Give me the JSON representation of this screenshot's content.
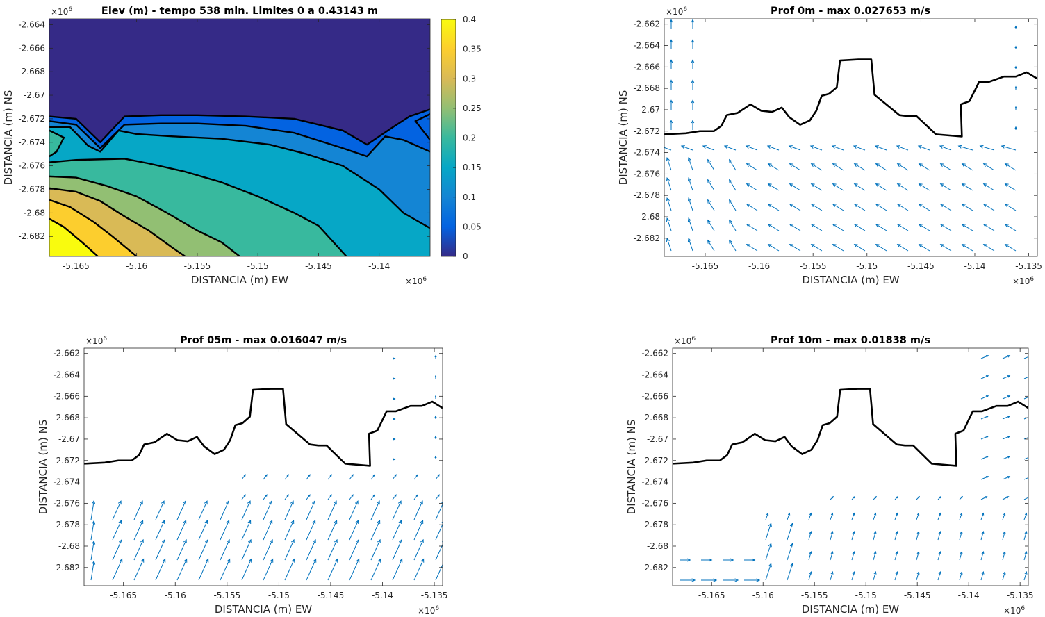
{
  "window": {
    "title": ""
  },
  "colors": {
    "quiver": "#0072bd",
    "coastline": "#000000",
    "axes": "#262626",
    "parula": [
      "#352a87",
      "#0363e1",
      "#1485d4",
      "#06a7c6",
      "#38b99e",
      "#92bf73",
      "#d9ba56",
      "#fcce2e",
      "#f9fb0e"
    ]
  },
  "chart_data": [
    {
      "id": "elev",
      "type": "heatmap",
      "subtype": "filled-contour",
      "title": "Elev (m) - tempo 538 min. Limites 0 a 0.43143 m",
      "xlabel": "DISTANCIA (m) EW",
      "ylabel": "DISTANCIA (m) NS",
      "x_exponent": "×10",
      "x_exponent_power": "6",
      "y_exponent": "×10",
      "y_exponent_power": "6",
      "xlim": [
        -5.1672,
        -5.1358
      ],
      "ylim": [
        -2.6837,
        -2.6635
      ],
      "xticks": [
        -5.165,
        -5.16,
        -5.155,
        -5.15,
        -5.145,
        -5.14
      ],
      "xtick_labels": [
        "-5.165",
        "-5.16",
        "-5.155",
        "-5.15",
        "-5.145",
        "-5.14"
      ],
      "yticks": [
        -2.682,
        -2.68,
        -2.678,
        -2.676,
        -2.674,
        -2.672,
        -2.67,
        -2.668,
        -2.666,
        -2.664
      ],
      "ytick_labels": [
        "-2.682",
        "-2.68",
        "-2.678",
        "-2.676",
        "-2.674",
        "-2.672",
        "-2.67",
        "-2.668",
        "-2.666",
        "-2.664"
      ],
      "colorbar": {
        "limits": [
          0,
          0.4
        ],
        "ticks": [
          0,
          0.05,
          0.1,
          0.15,
          0.2,
          0.25,
          0.3,
          0.35,
          0.4
        ],
        "tick_labels": [
          "0",
          "0.05",
          "0.1",
          "0.15",
          "0.2",
          "0.25",
          "0.3",
          "0.35",
          "0.4"
        ]
      },
      "contour_bands": [
        {
          "level": 0.0,
          "color": "#352a87",
          "boundary": [
            [
              -5.1672,
              -2.6718
            ],
            [
              -5.165,
              -2.672
            ],
            [
              -5.163,
              -2.674
            ],
            [
              -5.161,
              -2.6718
            ],
            [
              -5.158,
              -2.6717
            ],
            [
              -5.155,
              -2.6717
            ],
            [
              -5.151,
              -2.6718
            ],
            [
              -5.147,
              -2.672
            ],
            [
              -5.143,
              -2.673
            ],
            [
              -5.141,
              -2.6742
            ],
            [
              -5.139,
              -2.6728
            ],
            [
              -5.1375,
              -2.6718
            ],
            [
              -5.1358,
              -2.6712
            ]
          ]
        },
        {
          "level": 0.05,
          "color": "#0363e1",
          "boundary": [
            [
              -5.1672,
              -2.6722
            ],
            [
              -5.165,
              -2.6725
            ],
            [
              -5.163,
              -2.6745
            ],
            [
              -5.161,
              -2.6725
            ],
            [
              -5.158,
              -2.6724
            ],
            [
              -5.155,
              -2.6724
            ],
            [
              -5.151,
              -2.6726
            ],
            [
              -5.147,
              -2.6732
            ],
            [
              -5.143,
              -2.6745
            ],
            [
              -5.141,
              -2.6752
            ],
            [
              -5.1395,
              -2.6735
            ],
            [
              -5.138,
              -2.6738
            ],
            [
              -5.1358,
              -2.6748
            ]
          ]
        },
        {
          "level": 0.1,
          "color": "#1485d4",
          "boundary": [
            [
              -5.1672,
              -2.6727
            ],
            [
              -5.1655,
              -2.6727
            ],
            [
              -5.164,
              -2.6743
            ],
            [
              -5.163,
              -2.6748
            ],
            [
              -5.1615,
              -2.673
            ],
            [
              -5.16,
              -2.6733
            ],
            [
              -5.157,
              -2.6735
            ],
            [
              -5.153,
              -2.6737
            ],
            [
              -5.149,
              -2.6742
            ],
            [
              -5.146,
              -2.675
            ],
            [
              -5.143,
              -2.676
            ],
            [
              -5.14,
              -2.678
            ],
            [
              -5.138,
              -2.68
            ],
            [
              -5.1358,
              -2.6813
            ]
          ]
        },
        {
          "level": 0.15,
          "color": "#06a7c6",
          "boundary": [
            [
              -5.1672,
              -2.6757
            ],
            [
              -5.165,
              -2.6755
            ],
            [
              -5.161,
              -2.6754
            ],
            [
              -5.159,
              -2.6758
            ],
            [
              -5.156,
              -2.6765
            ],
            [
              -5.153,
              -2.6774
            ],
            [
              -5.15,
              -2.6786
            ],
            [
              -5.147,
              -2.68
            ],
            [
              -5.145,
              -2.6811
            ],
            [
              -5.1427,
              -2.6837
            ]
          ]
        },
        {
          "level": 0.2,
          "color": "#38b99e",
          "boundary": [
            [
              -5.1672,
              -2.6769
            ],
            [
              -5.165,
              -2.677
            ],
            [
              -5.1625,
              -2.6777
            ],
            [
              -5.16,
              -2.6786
            ],
            [
              -5.1575,
              -2.68
            ],
            [
              -5.155,
              -2.6815
            ],
            [
              -5.153,
              -2.6825
            ],
            [
              -5.1515,
              -2.6837
            ]
          ]
        },
        {
          "level": 0.25,
          "color": "#92bf73",
          "boundary": [
            [
              -5.1672,
              -2.6779
            ],
            [
              -5.165,
              -2.6782
            ],
            [
              -5.163,
              -2.679
            ],
            [
              -5.161,
              -2.6803
            ],
            [
              -5.159,
              -2.6815
            ],
            [
              -5.157,
              -2.683
            ],
            [
              -5.156,
              -2.6837
            ]
          ]
        },
        {
          "level": 0.3,
          "color": "#d9ba56",
          "boundary": [
            [
              -5.1672,
              -2.6789
            ],
            [
              -5.1655,
              -2.6795
            ],
            [
              -5.1635,
              -2.6808
            ],
            [
              -5.162,
              -2.682
            ],
            [
              -5.16,
              -2.6837
            ]
          ]
        },
        {
          "level": 0.35,
          "color": "#fcce2e",
          "boundary": [
            [
              -5.1672,
              -2.6805
            ],
            [
              -5.166,
              -2.6812
            ],
            [
              -5.1645,
              -2.6825
            ],
            [
              -5.1632,
              -2.6837
            ]
          ]
        },
        {
          "level": 0.4,
          "color": "#f9fb0e",
          "boundary": [
            [
              -5.1672,
              -2.6815
            ],
            [
              -5.1665,
              -2.6825
            ],
            [
              -5.1655,
              -2.6837
            ]
          ]
        }
      ]
    },
    {
      "id": "prof0",
      "type": "quiver",
      "title": "Prof 0m - max 0.027653 m/s",
      "xlabel": "DISTANCIA (m) EW",
      "ylabel": "DISTANCIA (m) NS",
      "x_exponent": "×10",
      "x_exponent_power": "6",
      "y_exponent": "×10",
      "y_exponent_power": "6",
      "xlim": [
        -5.1688,
        -5.1342
      ],
      "ylim": [
        -2.6837,
        -2.6615
      ],
      "xticks": [
        -5.165,
        -5.16,
        -5.155,
        -5.15,
        -5.145,
        -5.14,
        -5.135
      ],
      "xtick_labels": [
        "-5.165",
        "-5.16",
        "-5.155",
        "-5.15",
        "-5.145",
        "-5.14",
        "-5.135"
      ],
      "yticks": [
        -2.682,
        -2.68,
        -2.678,
        -2.676,
        -2.674,
        -2.672,
        -2.67,
        -2.668,
        -2.666,
        -2.664,
        -2.662
      ],
      "ytick_labels": [
        "-2.682",
        "-2.68",
        "-2.678",
        "-2.676",
        "-2.674",
        "-2.672",
        "-2.67",
        "-2.668",
        "-2.666",
        "-2.664",
        "-2.662"
      ],
      "pattern": "p0",
      "max_speed": 0.027653
    },
    {
      "id": "prof05",
      "type": "quiver",
      "title": "Prof 05m - max 0.016047 m/s",
      "xlabel": "DISTANCIA (m) EW",
      "ylabel": "DISTANCIA (m) NS",
      "x_exponent": "×10",
      "x_exponent_power": "6",
      "y_exponent": "×10",
      "y_exponent_power": "6",
      "xlim": [
        -5.1688,
        -5.1342
      ],
      "ylim": [
        -2.6837,
        -2.6615
      ],
      "xticks": [
        -5.165,
        -5.16,
        -5.155,
        -5.15,
        -5.145,
        -5.14,
        -5.135
      ],
      "xtick_labels": [
        "-5.165",
        "-5.16",
        "-5.155",
        "-5.15",
        "-5.145",
        "-5.14",
        "-5.135"
      ],
      "yticks": [
        -2.682,
        -2.68,
        -2.678,
        -2.676,
        -2.674,
        -2.672,
        -2.67,
        -2.668,
        -2.666,
        -2.664,
        -2.662
      ],
      "ytick_labels": [
        "-2.682",
        "-2.68",
        "-2.678",
        "-2.676",
        "-2.674",
        "-2.672",
        "-2.67",
        "-2.668",
        "-2.666",
        "-2.664",
        "-2.662"
      ],
      "pattern": "p5",
      "max_speed": 0.016047
    },
    {
      "id": "prof10",
      "type": "quiver",
      "title": "Prof 10m - max 0.01838 m/s",
      "xlabel": "DISTANCIA (m) EW",
      "ylabel": "DISTANCIA (m) NS",
      "x_exponent": "×10",
      "x_exponent_power": "6",
      "y_exponent": "×10",
      "y_exponent_power": "6",
      "xlim": [
        -5.1688,
        -5.1342
      ],
      "ylim": [
        -2.6837,
        -2.6615
      ],
      "xticks": [
        -5.165,
        -5.16,
        -5.155,
        -5.15,
        -5.145,
        -5.14,
        -5.135
      ],
      "xtick_labels": [
        "-5.165",
        "-5.16",
        "-5.155",
        "-5.15",
        "-5.145",
        "-5.14",
        "-5.135"
      ],
      "yticks": [
        -2.682,
        -2.68,
        -2.678,
        -2.676,
        -2.674,
        -2.672,
        -2.67,
        -2.668,
        -2.666,
        -2.664,
        -2.662
      ],
      "ytick_labels": [
        "-2.682",
        "-2.68",
        "-2.678",
        "-2.676",
        "-2.674",
        "-2.672",
        "-2.67",
        "-2.668",
        "-2.666",
        "-2.664",
        "-2.662"
      ],
      "pattern": "p10",
      "max_speed": 0.01838
    }
  ],
  "coastline": [
    [
      -5.1688,
      -2.6723
    ],
    [
      -5.1668,
      -2.6722
    ],
    [
      -5.1655,
      -2.672
    ],
    [
      -5.1642,
      -2.672
    ],
    [
      -5.1635,
      -2.6715
    ],
    [
      -5.163,
      -2.6705
    ],
    [
      -5.162,
      -2.6703
    ],
    [
      -5.1608,
      -2.6695
    ],
    [
      -5.1598,
      -2.6701
    ],
    [
      -5.1588,
      -2.6702
    ],
    [
      -5.1579,
      -2.6698
    ],
    [
      -5.1572,
      -2.6707
    ],
    [
      -5.1562,
      -2.6714
    ],
    [
      -5.1553,
      -2.671
    ],
    [
      -5.1547,
      -2.6701
    ],
    [
      -5.1542,
      -2.6687
    ],
    [
      -5.1535,
      -2.6685
    ],
    [
      -5.1528,
      -2.6679
    ],
    [
      -5.1525,
      -2.6654
    ],
    [
      -5.1508,
      -2.6653
    ],
    [
      -5.1496,
      -2.6653
    ],
    [
      -5.1493,
      -2.6686
    ],
    [
      -5.147,
      -2.6705
    ],
    [
      -5.1462,
      -2.6706
    ],
    [
      -5.1454,
      -2.6706
    ],
    [
      -5.1436,
      -2.6723
    ],
    [
      -5.1412,
      -2.6725
    ],
    [
      -5.1413,
      -2.6695
    ],
    [
      -5.1405,
      -2.6692
    ],
    [
      -5.1396,
      -2.6674
    ],
    [
      -5.1387,
      -2.6674
    ],
    [
      -5.1373,
      -2.6669
    ],
    [
      -5.1362,
      -2.6669
    ],
    [
      -5.1352,
      -2.6665
    ],
    [
      -5.1342,
      -2.6671
    ]
  ]
}
